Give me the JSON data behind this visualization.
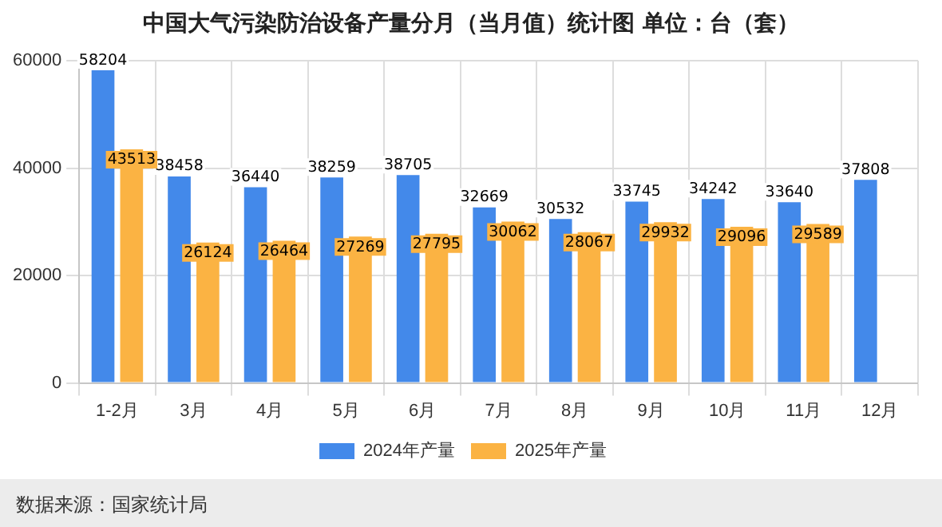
{
  "chart_data": {
    "type": "bar",
    "title": "中国大气污染防治设备产量分月（当月值）统计图  单位：台（套）",
    "categories": [
      "1-2月",
      "3月",
      "4月",
      "5月",
      "6月",
      "7月",
      "8月",
      "9月",
      "10月",
      "11月",
      "12月"
    ],
    "series": [
      {
        "name": "2024年产量",
        "color": "#4389ea",
        "values": [
          58204,
          38458,
          36440,
          38259,
          38705,
          32669,
          30532,
          33745,
          34242,
          33640,
          37808
        ]
      },
      {
        "name": "2025年产量",
        "color": "#fbb343",
        "values": [
          43513,
          26124,
          26464,
          27269,
          27795,
          30062,
          28067,
          29932,
          29096,
          29589,
          null
        ]
      }
    ],
    "ylim": [
      0,
      60000
    ],
    "yticks": [
      0,
      20000,
      40000,
      60000
    ],
    "grid": true,
    "legend": "bottom",
    "data_labels": true,
    "annotations": [
      "数据来源：国家统计局"
    ]
  }
}
